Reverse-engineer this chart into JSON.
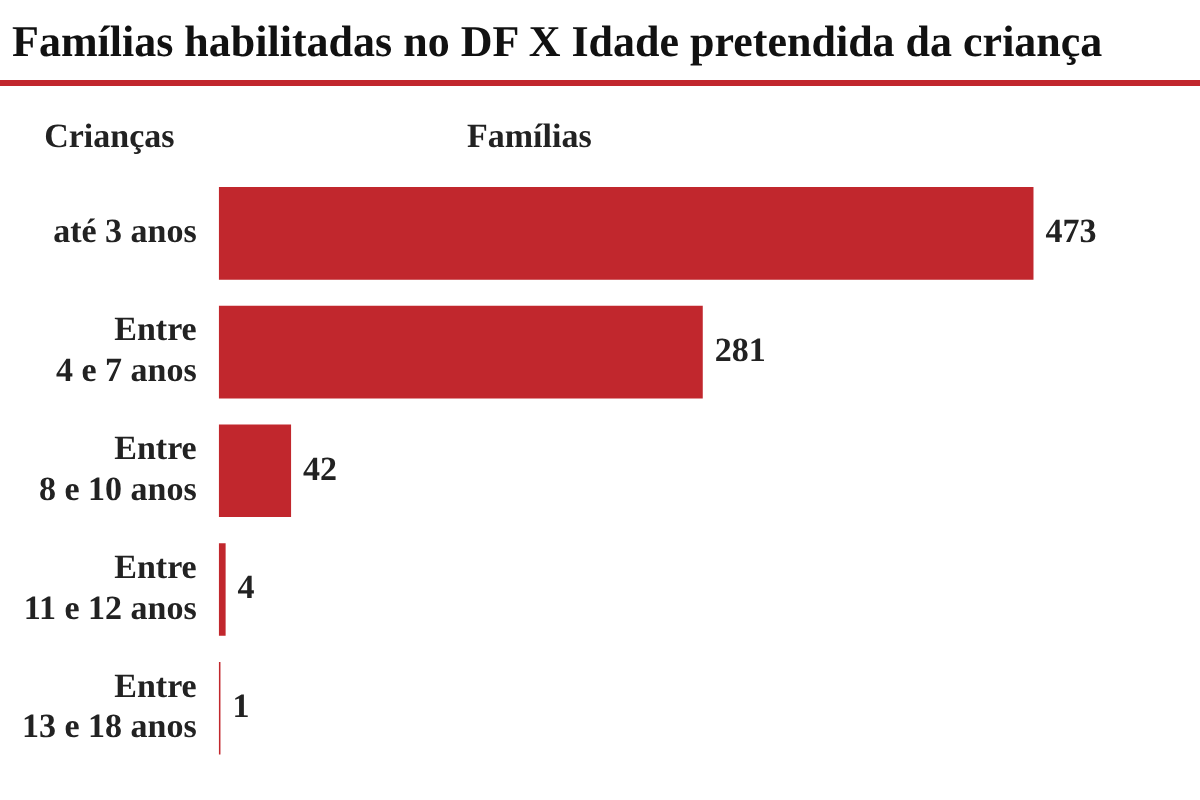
{
  "chart_data": {
    "type": "bar",
    "orientation": "horizontal",
    "title": "Famílias habilitadas no DF X Idade pretendida da criança",
    "xlabel": "Famílias",
    "ylabel": "Crianças",
    "categories": [
      "até 3 anos",
      "Entre\n4 e 7 anos",
      "Entre\n8 e 10 anos",
      "Entre\n11 e 12 anos",
      "Entre\n13 e 18 anos"
    ],
    "values": [
      473,
      281,
      42,
      4,
      1
    ],
    "color": "#c1272d",
    "data_labels": true,
    "grid": false,
    "legend": false,
    "tick_labels": "y"
  }
}
